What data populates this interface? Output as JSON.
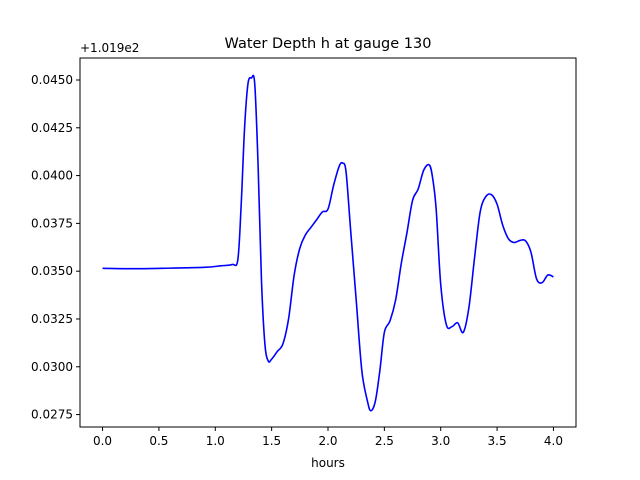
{
  "chart_data": {
    "type": "line",
    "title": "Water Depth h at gauge 130",
    "xlabel": "hours",
    "ylabel": "",
    "offset_text": "+1.019e2",
    "xlim": [
      -0.2,
      4.2
    ],
    "ylim": [
      0.02685,
      0.04615
    ],
    "xticks": [
      0.0,
      0.5,
      1.0,
      1.5,
      2.0,
      2.5,
      3.0,
      3.5,
      4.0
    ],
    "xtick_labels": [
      "0.0",
      "0.5",
      "1.0",
      "1.5",
      "2.0",
      "2.5",
      "3.0",
      "3.5",
      "4.0"
    ],
    "yticks": [
      0.0275,
      0.03,
      0.0325,
      0.035,
      0.0375,
      0.04,
      0.0425,
      0.045
    ],
    "ytick_labels": [
      "0.0275",
      "0.0300",
      "0.0325",
      "0.0350",
      "0.0375",
      "0.0400",
      "0.0425",
      "0.0450"
    ],
    "grid": false,
    "series": [
      {
        "color": "#0000ff",
        "x": [
          0.0,
          0.3,
          0.6,
          0.9,
          1.05,
          1.15,
          1.2,
          1.23,
          1.26,
          1.29,
          1.32,
          1.35,
          1.38,
          1.41,
          1.44,
          1.47,
          1.5,
          1.55,
          1.6,
          1.65,
          1.7,
          1.75,
          1.8,
          1.85,
          1.9,
          1.95,
          2.0,
          2.05,
          2.1,
          2.13,
          2.16,
          2.2,
          2.25,
          2.3,
          2.35,
          2.38,
          2.42,
          2.46,
          2.5,
          2.55,
          2.6,
          2.65,
          2.7,
          2.75,
          2.8,
          2.85,
          2.9,
          2.93,
          2.96,
          3.0,
          3.05,
          3.1,
          3.15,
          3.2,
          3.25,
          3.3,
          3.35,
          3.4,
          3.45,
          3.5,
          3.55,
          3.6,
          3.65,
          3.7,
          3.75,
          3.8,
          3.85,
          3.9,
          3.95,
          4.0
        ],
        "y": [
          0.03515,
          0.03513,
          0.03516,
          0.0352,
          0.03528,
          0.03535,
          0.0356,
          0.0385,
          0.0425,
          0.0448,
          0.0451,
          0.0448,
          0.0405,
          0.0345,
          0.0312,
          0.0303,
          0.0304,
          0.0308,
          0.0312,
          0.0325,
          0.0348,
          0.0362,
          0.0369,
          0.0373,
          0.0377,
          0.0381,
          0.03825,
          0.0395,
          0.0405,
          0.04065,
          0.0402,
          0.0372,
          0.0335,
          0.0298,
          0.0282,
          0.0277,
          0.0282,
          0.0298,
          0.0318,
          0.0324,
          0.0335,
          0.0354,
          0.037,
          0.0387,
          0.0393,
          0.0403,
          0.04055,
          0.0398,
          0.0382,
          0.0343,
          0.0322,
          0.0321,
          0.0323,
          0.0318,
          0.0331,
          0.0357,
          0.0381,
          0.0389,
          0.039,
          0.0385,
          0.0374,
          0.0367,
          0.0365,
          0.0366,
          0.0366,
          0.036,
          0.0346,
          0.0344,
          0.0348,
          0.0347
        ]
      }
    ]
  }
}
